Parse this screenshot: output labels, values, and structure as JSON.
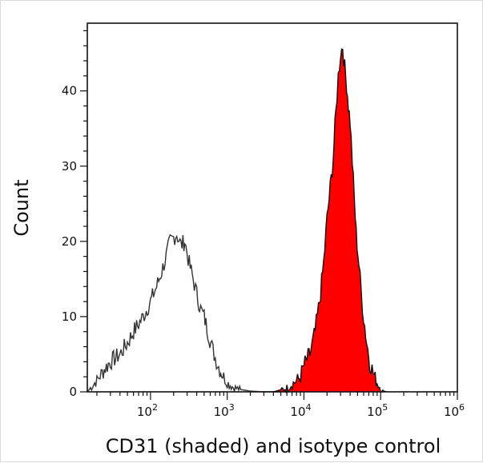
{
  "chart_data": {
    "type": "area",
    "title": "",
    "xlabel": "CD31 (shaded) and isotype control",
    "ylabel": "Count",
    "xscale": "log10",
    "xlim": [
      15,
      1000000
    ],
    "ylim": [
      0,
      49
    ],
    "grid": false,
    "legend": "none",
    "x_tick_labels": [
      {
        "value": 100,
        "base": "10",
        "exp": "2"
      },
      {
        "value": 1000,
        "base": "10",
        "exp": "3"
      },
      {
        "value": 10000,
        "base": "10",
        "exp": "4"
      },
      {
        "value": 100000,
        "base": "10",
        "exp": "5"
      },
      {
        "value": 1000000,
        "base": "10",
        "exp": "6"
      }
    ],
    "y_ticks": [
      0,
      10,
      20,
      30,
      40
    ],
    "y_tick_labels": [
      "0",
      "10",
      "20",
      "30",
      "40"
    ],
    "series": [
      {
        "style": "outline",
        "color": "#333333",
        "x": [
          15,
          20,
          25,
          30,
          40,
          50,
          60,
          70,
          80,
          100,
          120,
          140,
          160,
          180,
          200,
          220,
          250,
          280,
          320,
          360,
          400,
          450,
          500,
          560,
          630,
          700,
          800,
          900,
          1000,
          1200,
          1500,
          2000,
          3000,
          5000
        ],
        "y": [
          0,
          1.5,
          3,
          4,
          5,
          6.5,
          8,
          9,
          10,
          12,
          14,
          16,
          18,
          20,
          20.5,
          21,
          19.5,
          20,
          17,
          15,
          13,
          11,
          10,
          8,
          6,
          4.5,
          3,
          2,
          1.2,
          0.6,
          0.3,
          0.1,
          0,
          0
        ]
      },
      {
        "style": "filled",
        "color": "#ff0000",
        "outline_color": "#111111",
        "x": [
          4000,
          6000,
          8000,
          9000,
          10000,
          12000,
          14000,
          16000,
          18000,
          20000,
          22000,
          24000,
          26000,
          28000,
          30000,
          32000,
          34000,
          36000,
          38000,
          40000,
          44000,
          48000,
          52000,
          56000,
          60000,
          66000,
          72000,
          80000,
          90000,
          100000,
          110000,
          120000
        ],
        "y": [
          0,
          0.5,
          1.5,
          2,
          3.5,
          5,
          8,
          12,
          17,
          23,
          27,
          31,
          37,
          42,
          45,
          46,
          43,
          41,
          38,
          36,
          28,
          21,
          17,
          13,
          10,
          6.5,
          4,
          2.5,
          1.2,
          0.5,
          0.1,
          0
        ]
      }
    ]
  }
}
